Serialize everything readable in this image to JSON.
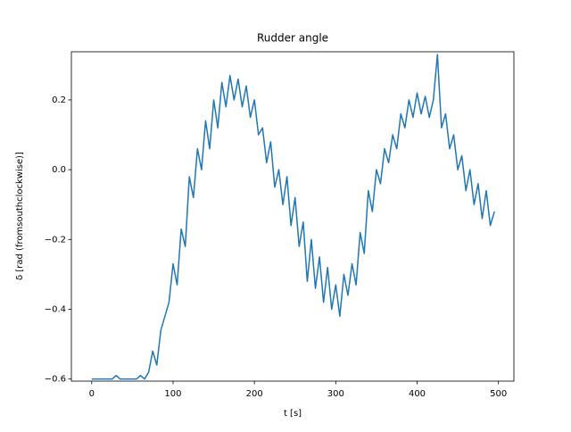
{
  "chart_data": {
    "type": "line",
    "title": "Rudder angle",
    "x_label": "t [s]",
    "y_label": "δ [rad (fromsouthclockwise)]",
    "color": "#1f77b4",
    "x": [
      0,
      5,
      10,
      15,
      20,
      25,
      30,
      35,
      40,
      45,
      50,
      55,
      60,
      65,
      70,
      75,
      80,
      85,
      90,
      95,
      100,
      105,
      110,
      115,
      120,
      125,
      130,
      135,
      140,
      145,
      150,
      155,
      160,
      165,
      170,
      175,
      180,
      185,
      190,
      195,
      200,
      205,
      210,
      215,
      220,
      225,
      230,
      235,
      240,
      245,
      250,
      255,
      260,
      265,
      270,
      275,
      280,
      285,
      290,
      295,
      300,
      305,
      310,
      315,
      320,
      325,
      330,
      335,
      340,
      345,
      350,
      355,
      360,
      365,
      370,
      375,
      380,
      385,
      390,
      395,
      400,
      405,
      410,
      415,
      420,
      425,
      430,
      435,
      440,
      445,
      450,
      455,
      460,
      465,
      470,
      475,
      480,
      485,
      490,
      495
    ],
    "values": [
      -0.6,
      -0.6,
      -0.6,
      -0.6,
      -0.6,
      -0.6,
      -0.59,
      -0.6,
      -0.6,
      -0.6,
      -0.6,
      -0.6,
      -0.59,
      -0.6,
      -0.58,
      -0.52,
      -0.56,
      -0.46,
      -0.42,
      -0.38,
      -0.27,
      -0.33,
      -0.17,
      -0.22,
      -0.02,
      -0.08,
      0.06,
      0.0,
      0.14,
      0.06,
      0.2,
      0.12,
      0.25,
      0.18,
      0.27,
      0.2,
      0.26,
      0.18,
      0.24,
      0.15,
      0.2,
      0.1,
      0.12,
      0.02,
      0.08,
      -0.05,
      0.0,
      -0.1,
      -0.02,
      -0.16,
      -0.08,
      -0.22,
      -0.15,
      -0.32,
      -0.2,
      -0.34,
      -0.25,
      -0.38,
      -0.28,
      -0.4,
      -0.33,
      -0.42,
      -0.3,
      -0.36,
      -0.27,
      -0.33,
      -0.18,
      -0.24,
      -0.06,
      -0.12,
      0.0,
      -0.04,
      0.06,
      0.02,
      0.1,
      0.06,
      0.16,
      0.12,
      0.2,
      0.15,
      0.22,
      0.16,
      0.21,
      0.15,
      0.2,
      0.33,
      0.12,
      0.16,
      0.06,
      0.1,
      0.0,
      0.04,
      -0.06,
      0.0,
      -0.1,
      -0.04,
      -0.14,
      -0.06,
      -0.16,
      -0.12
    ],
    "xlim": [
      -25,
      519
    ],
    "ylim": [
      -0.606,
      0.338
    ],
    "xticks": [
      0,
      100,
      200,
      300,
      400,
      500
    ],
    "yticks": [
      {
        "value": -0.6,
        "label": "−0.6"
      },
      {
        "value": -0.4,
        "label": "−0.4"
      },
      {
        "value": -0.2,
        "label": "−0.2"
      },
      {
        "value": 0,
        "label": "0.0"
      },
      0.2
    ]
  }
}
